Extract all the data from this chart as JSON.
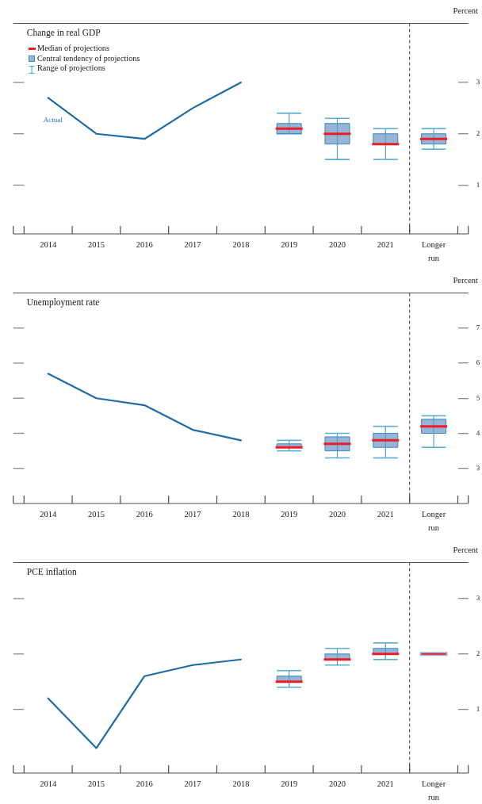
{
  "chart_data": [
    {
      "type": "line",
      "title": "Change in real GDP",
      "ylabel": "Percent",
      "categories": [
        "2014",
        "2015",
        "2016",
        "2017",
        "2018",
        "2019",
        "2020",
        "2021",
        "Longer run"
      ],
      "series": [
        {
          "name": "Actual",
          "color": "#1d6ca6",
          "values": [
            2.7,
            2.0,
            1.9,
            2.5,
            3.0,
            null,
            null,
            null,
            null
          ]
        },
        {
          "type": "box",
          "color": "#96b5d7",
          "boxes": [
            null,
            null,
            null,
            null,
            null,
            {
              "low": 2.0,
              "q1": 2.0,
              "median": 2.1,
              "q3": 2.2,
              "high": 2.4
            },
            {
              "low": 1.5,
              "q1": 1.8,
              "median": 2.0,
              "q3": 2.2,
              "high": 2.3
            },
            {
              "low": 1.5,
              "q1": 1.8,
              "median": 1.8,
              "q3": 2.0,
              "high": 2.1
            },
            {
              "low": 1.7,
              "q1": 1.8,
              "median": 1.9,
              "q3": 2.0,
              "high": 2.1
            }
          ]
        }
      ],
      "ylim": [
        0.05,
        4.15
      ],
      "yticks": [
        1,
        2,
        3
      ],
      "annotations": [
        "Median of projections",
        "Central tendency of projections",
        "Range of projections"
      ]
    },
    {
      "type": "line",
      "title": "Unemployment rate",
      "ylabel": "Percent",
      "categories": [
        "2014",
        "2015",
        "2016",
        "2017",
        "2018",
        "2019",
        "2020",
        "2021",
        "Longer run"
      ],
      "series": [
        {
          "color": "#1d6ca6",
          "values": [
            5.7,
            5.0,
            4.8,
            4.1,
            3.8,
            null,
            null,
            null,
            null
          ]
        },
        {
          "type": "box",
          "color": "#96b5d7",
          "boxes": [
            null,
            null,
            null,
            null,
            null,
            {
              "low": 3.5,
              "q1": 3.6,
              "median": 3.6,
              "q3": 3.7,
              "high": 3.8
            },
            {
              "low": 3.3,
              "q1": 3.5,
              "median": 3.7,
              "q3": 3.9,
              "high": 4.0
            },
            {
              "low": 3.3,
              "q1": 3.6,
              "median": 3.8,
              "q3": 4.0,
              "high": 4.2
            },
            {
              "low": 3.6,
              "q1": 4.0,
              "median": 4.2,
              "q3": 4.4,
              "high": 4.5
            }
          ]
        }
      ],
      "ylim": [
        2,
        8
      ],
      "yticks": [
        3,
        4,
        5,
        6,
        7
      ]
    },
    {
      "type": "line",
      "title": "PCE inflation",
      "ylabel": "Percent",
      "categories": [
        "2014",
        "2015",
        "2016",
        "2017",
        "2018",
        "2019",
        "2020",
        "2021",
        "Longer run"
      ],
      "series": [
        {
          "color": "#1d6ca6",
          "values": [
            1.2,
            0.3,
            1.6,
            1.8,
            1.9,
            null,
            null,
            null,
            null
          ]
        },
        {
          "type": "box",
          "color": "#96b5d7",
          "boxes": [
            null,
            null,
            null,
            null,
            null,
            {
              "low": 1.4,
              "q1": 1.5,
              "median": 1.5,
              "q3": 1.6,
              "high": 1.7
            },
            {
              "low": 1.8,
              "q1": 1.9,
              "median": 1.9,
              "q3": 2.0,
              "high": 2.1
            },
            {
              "low": 1.9,
              "q1": 2.0,
              "median": 2.0,
              "q3": 2.1,
              "high": 2.2
            },
            {
              "low": 2.0,
              "q1": 2.0,
              "median": 2.0,
              "q3": 2.0,
              "high": 2.0
            }
          ]
        }
      ],
      "ylim": [
        -0.15,
        3.65
      ],
      "yticks": [
        1,
        2,
        3
      ]
    }
  ]
}
